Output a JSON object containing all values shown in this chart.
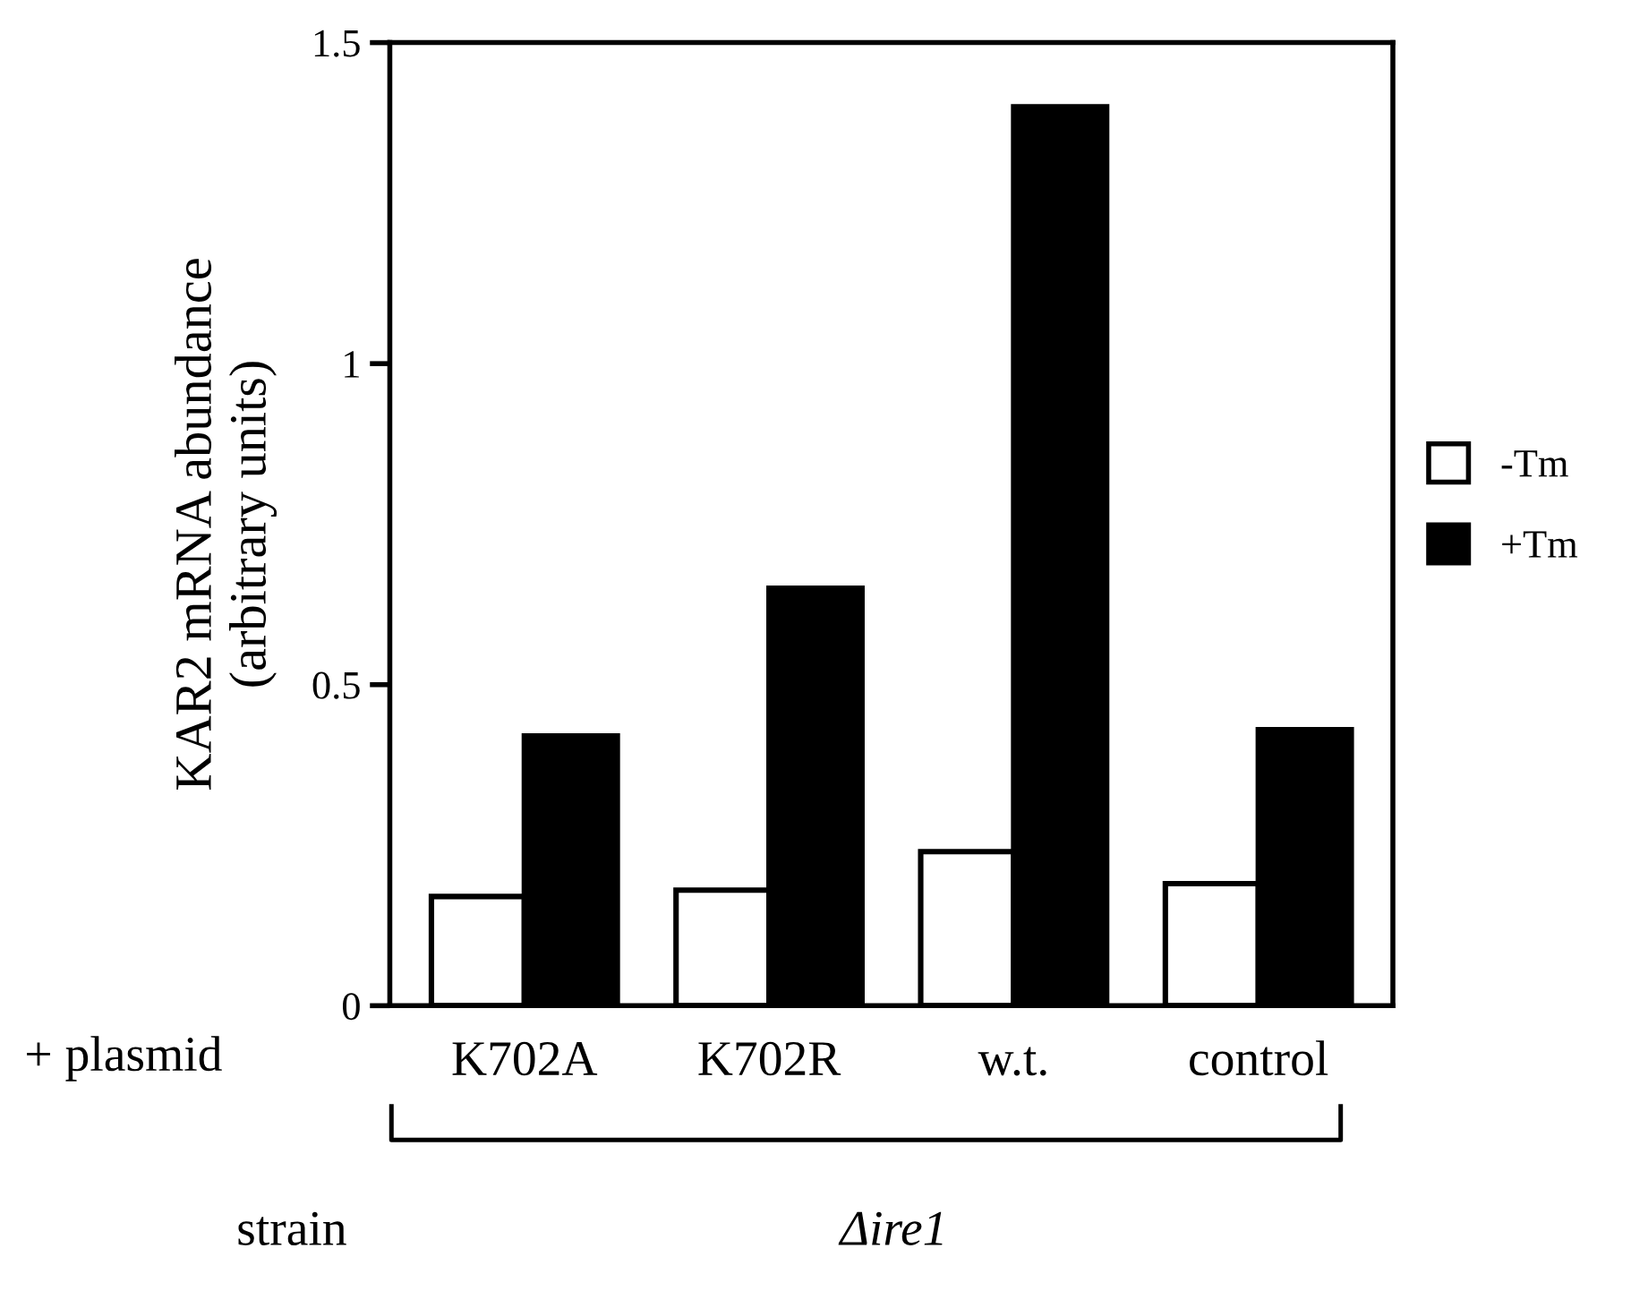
{
  "chart_data": {
    "type": "bar",
    "ylabel": "KAR2 mRNA abundance\n(arbitrary units)",
    "categories": [
      "K702A",
      "K702R",
      "w.t.",
      "control"
    ],
    "series": [
      {
        "name": "-Tm",
        "color": "#ffffff",
        "values": [
          0.17,
          0.18,
          0.24,
          0.19
        ]
      },
      {
        "name": "+Tm",
        "color": "#000000",
        "values": [
          0.42,
          0.65,
          1.4,
          0.43
        ]
      }
    ],
    "ylim": [
      0,
      1.5
    ],
    "yticks": [
      0,
      0.5,
      1,
      1.5
    ],
    "grid": false,
    "legend": "right",
    "annotations": [
      "+ plasmid",
      "strain",
      "Δire1"
    ]
  }
}
